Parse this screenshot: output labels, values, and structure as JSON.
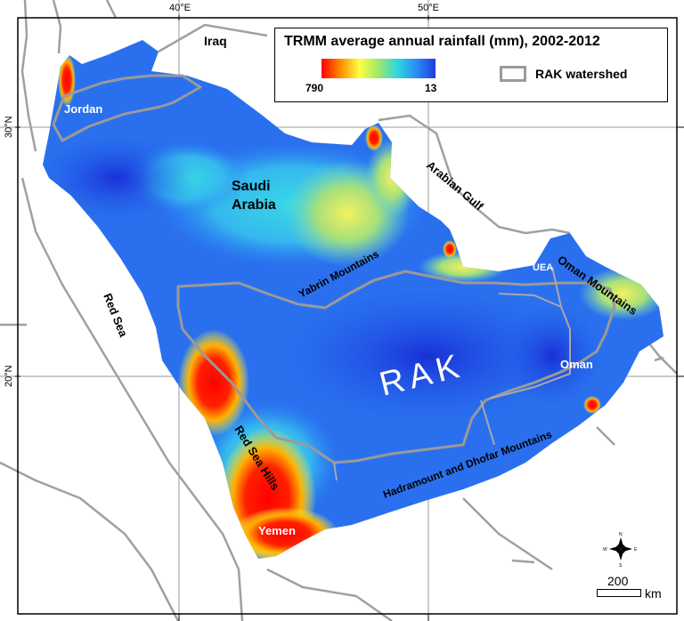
{
  "map": {
    "title": "TRMM average annual rainfall (mm), 2002-2012",
    "legend": {
      "max_label": "790",
      "min_label": "13",
      "watershed_label": "RAK watershed",
      "colors": [
        "#ff0000",
        "#ff8c00",
        "#ffff40",
        "#9ee86a",
        "#2fd6e0",
        "#2a8cf5",
        "#1f3ee0"
      ],
      "watershed_color": "#9a9a9a"
    },
    "graticule": {
      "longitudes": [
        "40°E",
        "50°E"
      ],
      "latitudes": [
        "30°N",
        "20°N"
      ]
    },
    "labels": {
      "iraq": "Iraq",
      "jordan": "Jordan",
      "saudi_line1": "Saudi",
      "saudi_line2": "Arabia",
      "arabian_gulf": "Arabian Gulf",
      "yabrin": "Yabrin Mountains",
      "uae": "UEA",
      "oman_mountains": "Oman Mountains",
      "red_sea": "Red Sea",
      "rak": "RAK",
      "oman": "Oman",
      "hadramount": "Hadramount and  Dhofar Mountains",
      "red_sea_hills": "Red Sea Hills",
      "yemen": "Yemen"
    },
    "scale": {
      "value": "200",
      "unit": "km"
    },
    "compass": {
      "n": "N",
      "s": "S",
      "e": "E",
      "w": "W"
    }
  }
}
